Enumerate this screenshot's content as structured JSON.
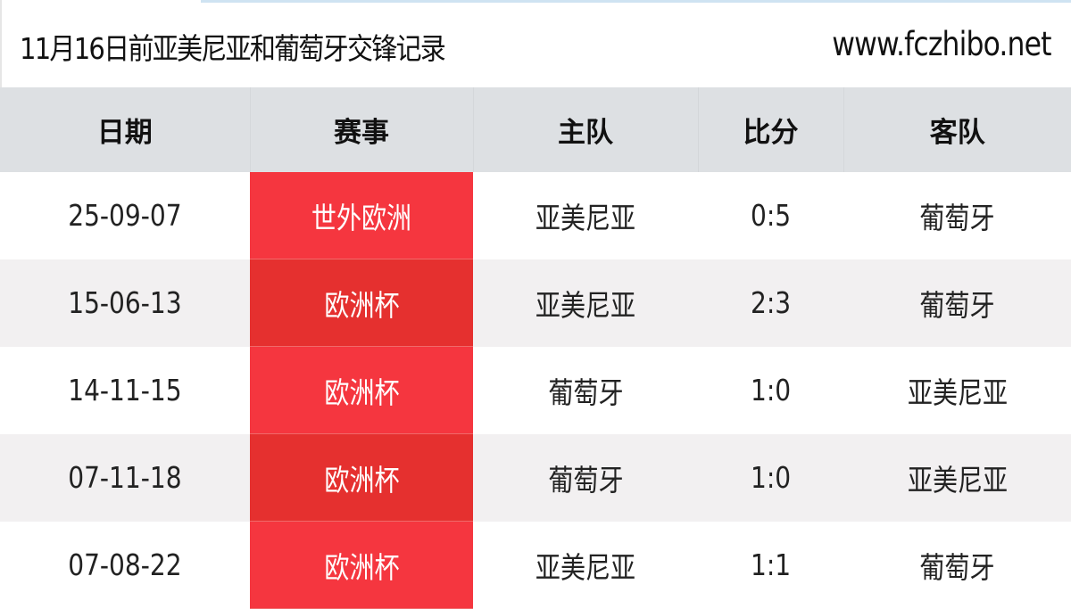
{
  "header": {
    "title": "11月16日前亚美尼亚和葡萄牙交锋记录",
    "site": "www.fczhibo.net"
  },
  "table": {
    "columns": [
      "日期",
      "赛事",
      "主队",
      "比分",
      "客队"
    ],
    "rows": [
      {
        "date": "25-09-07",
        "competition": "世外欧洲",
        "home": "亚美尼亚",
        "score": "0:5",
        "away": "葡萄牙"
      },
      {
        "date": "15-06-13",
        "competition": "欧洲杯",
        "home": "亚美尼亚",
        "score": "2:3",
        "away": "葡萄牙"
      },
      {
        "date": "14-11-15",
        "competition": "欧洲杯",
        "home": "葡萄牙",
        "score": "1:0",
        "away": "亚美尼亚"
      },
      {
        "date": "07-11-18",
        "competition": "欧洲杯",
        "home": "葡萄牙",
        "score": "1:0",
        "away": "亚美尼亚"
      },
      {
        "date": "07-08-22",
        "competition": "欧洲杯",
        "home": "亚美尼亚",
        "score": "1:1",
        "away": "葡萄牙"
      }
    ]
  },
  "colors": {
    "competition_cell": "#f5363f",
    "competition_cell_alt": "#e5302f",
    "header_bg": "#dde0e3",
    "row_alt_bg": "#f2f0f1"
  }
}
